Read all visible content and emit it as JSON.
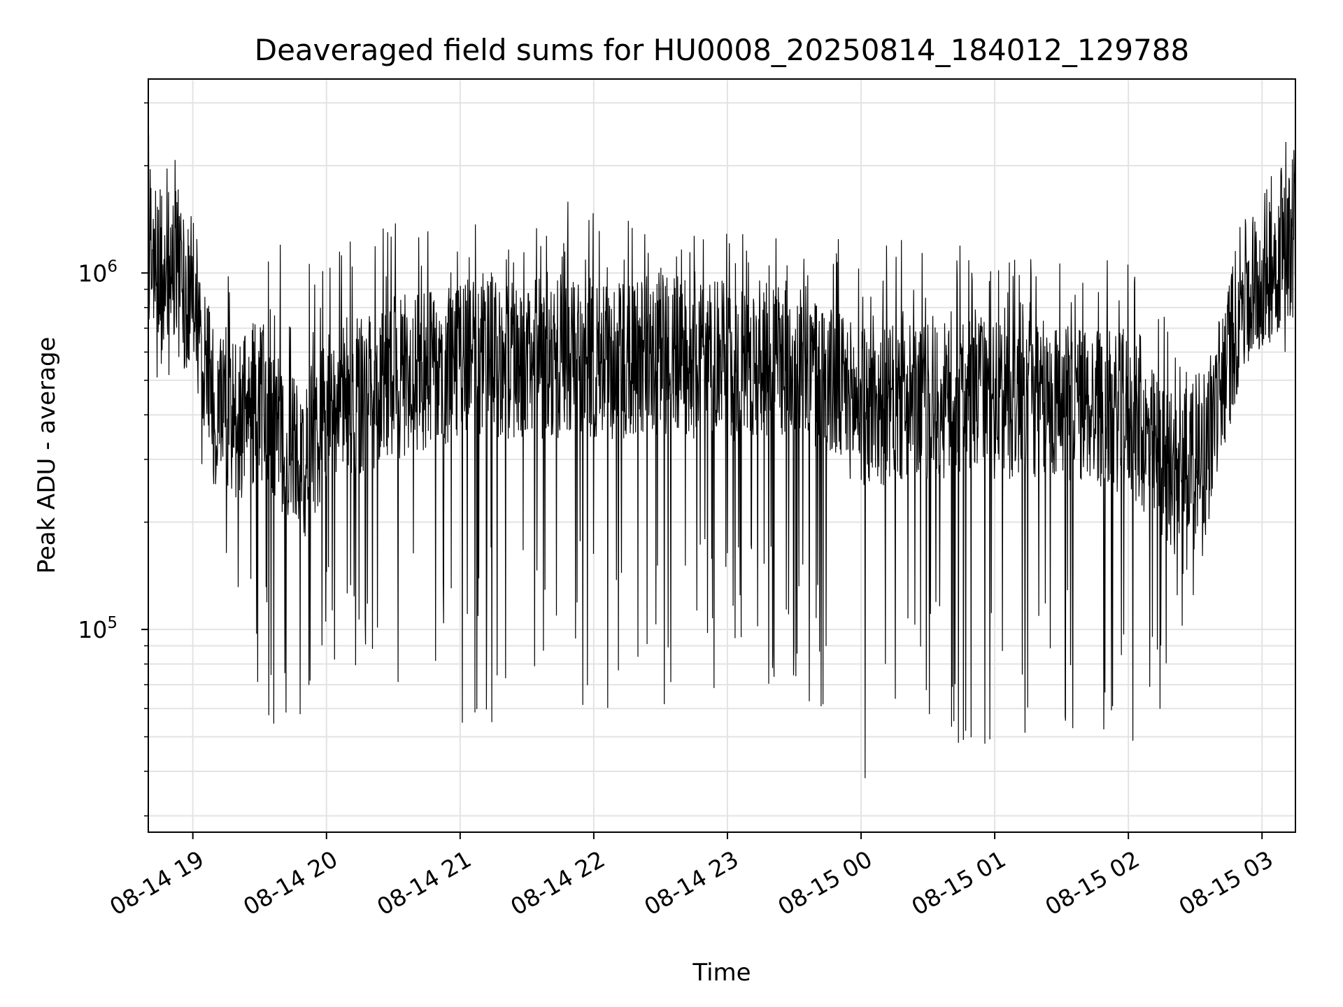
{
  "chart_data": {
    "type": "line",
    "title": "Deaveraged field sums for HU0008_20250814_184012_129788",
    "xlabel": "Time",
    "ylabel": "Peak ADU - average",
    "y_scale": "log",
    "ylim": [
      27000,
      3500000
    ],
    "xlim": [
      "2025-08-14 18:40",
      "2025-08-15 03:15"
    ],
    "grid": true,
    "line_color": "#000000",
    "x_ticks": [
      "08-14 19",
      "08-14 20",
      "08-14 21",
      "08-14 22",
      "08-14 23",
      "08-15 00",
      "08-15 01",
      "08-15 02",
      "08-15 03"
    ],
    "y_ticks": [
      {
        "base": "10",
        "exp": "5",
        "value": 100000
      },
      {
        "base": "10",
        "exp": "6",
        "value": 1000000
      }
    ],
    "series": [
      {
        "x": [
          "2025-08-14 18:40",
          "2025-08-14 18:50",
          "2025-08-14 19:00",
          "2025-08-14 19:10",
          "2025-08-14 19:20",
          "2025-08-14 19:30",
          "2025-08-14 19:40",
          "2025-08-14 19:50",
          "2025-08-14 20:00",
          "2025-08-14 20:30",
          "2025-08-14 21:00",
          "2025-08-14 21:30",
          "2025-08-14 22:00",
          "2025-08-14 22:30",
          "2025-08-14 23:00",
          "2025-08-14 23:30",
          "2025-08-15 00:00",
          "2025-08-15 00:30",
          "2025-08-15 01:00",
          "2025-08-15 01:30",
          "2025-08-15 02:00",
          "2025-08-15 02:20",
          "2025-08-15 02:35",
          "2025-08-15 02:50",
          "2025-08-15 03:00",
          "2025-08-15 03:15"
        ],
        "values": [
          1200000,
          1000000,
          850000,
          420000,
          380000,
          450000,
          350000,
          300000,
          420000,
          500000,
          560000,
          580000,
          560000,
          590000,
          560000,
          580000,
          420000,
          430000,
          440000,
          440000,
          400000,
          270000,
          330000,
          800000,
          1000000,
          1300000
        ],
        "spike_high": [
          3000000,
          2500000,
          1000000,
          800000,
          1300000,
          1400000,
          1300000,
          1100000,
          1100000,
          1500000,
          1400000,
          1300000,
          1800000,
          1300000,
          1400000,
          1200000,
          1300000,
          1200000,
          1200000,
          1100000,
          1100000,
          700000,
          700000,
          900000,
          2000000,
          2600000
        ],
        "spike_low": [
          500000,
          400000,
          350000,
          180000,
          100000,
          50000,
          45000,
          60000,
          70000,
          60000,
          50000,
          60000,
          55000,
          55000,
          70000,
          60000,
          35000,
          45000,
          45000,
          40000,
          45000,
          60000,
          180000,
          500000,
          600000,
          600000
        ]
      }
    ]
  }
}
